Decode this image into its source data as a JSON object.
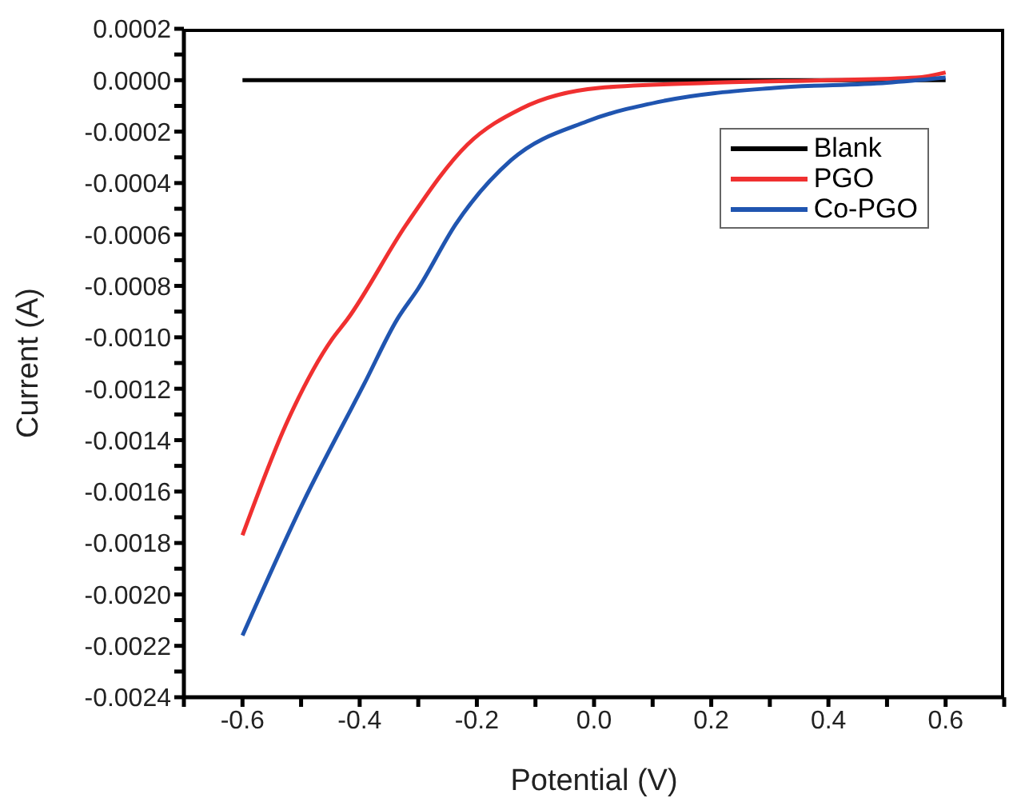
{
  "chart_data": {
    "type": "line",
    "xlabel": "Potential (V)",
    "ylabel": "Current (A)",
    "xlim": [
      -0.7,
      0.7
    ],
    "xticks": [
      {
        "value": -0.7,
        "label": null
      },
      {
        "value": -0.6,
        "label": "-0.6"
      },
      {
        "value": -0.5,
        "label": null
      },
      {
        "value": -0.4,
        "label": "-0.4"
      },
      {
        "value": -0.3,
        "label": null
      },
      {
        "value": -0.2,
        "label": "-0.2"
      },
      {
        "value": -0.1,
        "label": null
      },
      {
        "value": 0,
        "label": "0.0"
      },
      {
        "value": 0.1,
        "label": null
      },
      {
        "value": 0.2,
        "label": "0.2"
      },
      {
        "value": 0.3,
        "label": null
      },
      {
        "value": 0.4,
        "label": "0.4"
      },
      {
        "value": 0.5,
        "label": null
      },
      {
        "value": 0.6,
        "label": "0.6"
      },
      {
        "value": 0.7,
        "label": null
      }
    ],
    "ylim": [
      -0.0024,
      0.0002
    ],
    "yticks": [
      {
        "value": 0.0002,
        "label": "0.0002"
      },
      {
        "value": 0.0001,
        "label": null
      },
      {
        "value": 0,
        "label": "0.0000"
      },
      {
        "value": -0.0001,
        "label": null
      },
      {
        "value": -0.0002,
        "label": "-0.0002"
      },
      {
        "value": -0.0003,
        "label": null
      },
      {
        "value": -0.0004,
        "label": "-0.0004"
      },
      {
        "value": -0.0005,
        "label": null
      },
      {
        "value": -0.0006,
        "label": "-0.0006"
      },
      {
        "value": -0.0007,
        "label": null
      },
      {
        "value": -0.0008,
        "label": "-0.0008"
      },
      {
        "value": -0.0009,
        "label": null
      },
      {
        "value": -0.001,
        "label": "-0.0010"
      },
      {
        "value": -0.0011,
        "label": null
      },
      {
        "value": -0.0012,
        "label": "-0.0012"
      },
      {
        "value": -0.0013,
        "label": null
      },
      {
        "value": -0.0014,
        "label": "-0.0014"
      },
      {
        "value": -0.0015,
        "label": null
      },
      {
        "value": -0.0016,
        "label": "-0.0016"
      },
      {
        "value": -0.0017,
        "label": null
      },
      {
        "value": -0.0018,
        "label": "-0.0018"
      },
      {
        "value": -0.0019,
        "label": null
      },
      {
        "value": -0.002,
        "label": "-0.0020"
      },
      {
        "value": -0.0021,
        "label": null
      },
      {
        "value": -0.0022,
        "label": "-0.0022"
      },
      {
        "value": -0.0023,
        "label": null
      },
      {
        "value": -0.0024,
        "label": "-0.0024"
      }
    ],
    "legend": "top right",
    "marker": "none",
    "line_style": "solid",
    "series": [
      {
        "name": "Blank",
        "color": "#000000",
        "x": [
          -0.6,
          -0.3,
          0,
          0.3,
          0.6
        ],
        "values": [
          0,
          0,
          0,
          0,
          0
        ]
      },
      {
        "name": "PGO",
        "color": "#f03030",
        "x": [
          -0.6,
          -0.524,
          -0.448,
          -0.421,
          -0.32,
          -0.216,
          -0.124,
          0.008,
          0.2,
          0.4,
          0.55,
          0.6
        ],
        "values": [
          -0.00177,
          -0.00133,
          -0.00101,
          -0.00093,
          -0.00056,
          -0.00025,
          -0.00011,
          -3e-05,
          -1e-05,
          0,
          1e-05,
          3e-05
        ]
      },
      {
        "name": "Co-PGO",
        "color": "#2055b0",
        "x": [
          -0.6,
          -0.496,
          -0.392,
          -0.336,
          -0.3,
          -0.236,
          -0.141,
          -0.012,
          0.12,
          0.307,
          0.5,
          0.6
        ],
        "values": [
          -0.00216,
          -0.00164,
          -0.00118,
          -0.00093,
          -0.00081,
          -0.00056,
          -0.00031,
          -0.00016,
          -8e-05,
          -3e-05,
          -1e-05,
          1e-05
        ]
      }
    ]
  }
}
